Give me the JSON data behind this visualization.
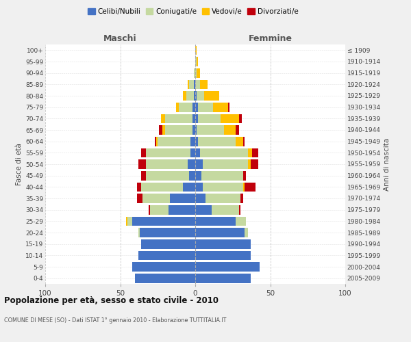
{
  "age_groups": [
    "0-4",
    "5-9",
    "10-14",
    "15-19",
    "20-24",
    "25-29",
    "30-34",
    "35-39",
    "40-44",
    "45-49",
    "50-54",
    "55-59",
    "60-64",
    "65-69",
    "70-74",
    "75-79",
    "80-84",
    "85-89",
    "90-94",
    "95-99",
    "100+"
  ],
  "birth_years": [
    "2005-2009",
    "2000-2004",
    "1995-1999",
    "1990-1994",
    "1985-1989",
    "1980-1984",
    "1975-1979",
    "1970-1974",
    "1965-1969",
    "1960-1964",
    "1955-1959",
    "1950-1954",
    "1945-1949",
    "1940-1944",
    "1935-1939",
    "1930-1934",
    "1925-1929",
    "1920-1924",
    "1915-1919",
    "1910-1914",
    "≤ 1909"
  ],
  "maschi_celibi": [
    40,
    42,
    38,
    36,
    37,
    42,
    18,
    17,
    8,
    4,
    5,
    3,
    3,
    2,
    2,
    2,
    1,
    1,
    0,
    0,
    0
  ],
  "maschi_coniugati": [
    0,
    0,
    0,
    0,
    1,
    3,
    12,
    18,
    28,
    29,
    28,
    30,
    22,
    18,
    18,
    9,
    5,
    3,
    1,
    0,
    0
  ],
  "maschi_vedovi": [
    0,
    0,
    0,
    0,
    0,
    1,
    0,
    0,
    0,
    0,
    0,
    0,
    1,
    2,
    3,
    2,
    2,
    1,
    0,
    0,
    0
  ],
  "maschi_divorziati": [
    0,
    0,
    0,
    0,
    0,
    0,
    1,
    4,
    3,
    3,
    5,
    3,
    1,
    2,
    0,
    0,
    0,
    0,
    0,
    0,
    0
  ],
  "femmine_celibi": [
    37,
    43,
    37,
    37,
    33,
    27,
    11,
    7,
    5,
    4,
    5,
    3,
    2,
    1,
    2,
    2,
    1,
    0,
    0,
    0,
    0
  ],
  "femmine_coniugati": [
    0,
    0,
    0,
    0,
    2,
    7,
    18,
    23,
    27,
    28,
    30,
    32,
    25,
    18,
    15,
    10,
    5,
    3,
    1,
    1,
    0
  ],
  "femmine_vedovi": [
    0,
    0,
    0,
    0,
    0,
    0,
    0,
    0,
    1,
    0,
    2,
    3,
    5,
    8,
    12,
    10,
    10,
    5,
    2,
    1,
    1
  ],
  "femmine_divorziati": [
    0,
    0,
    0,
    0,
    0,
    0,
    1,
    2,
    7,
    2,
    5,
    4,
    1,
    2,
    2,
    1,
    0,
    0,
    0,
    0,
    0
  ],
  "color_celibi": "#4472c4",
  "color_coniugati": "#c5d9a0",
  "color_vedovi": "#ffc000",
  "color_divorziati": "#c0000b",
  "title": "Popolazione per età, sesso e stato civile - 2010",
  "subtitle": "COMUNE DI MESE (SO) - Dati ISTAT 1° gennaio 2010 - Elaborazione TUTTITALIA.IT",
  "xlabel_left": "Maschi",
  "xlabel_right": "Femmine",
  "ylabel_left": "Fasce di età",
  "ylabel_right": "Anni di nascita",
  "xlim": 100,
  "background_color": "#f0f0f0",
  "plot_bg_color": "#ffffff"
}
